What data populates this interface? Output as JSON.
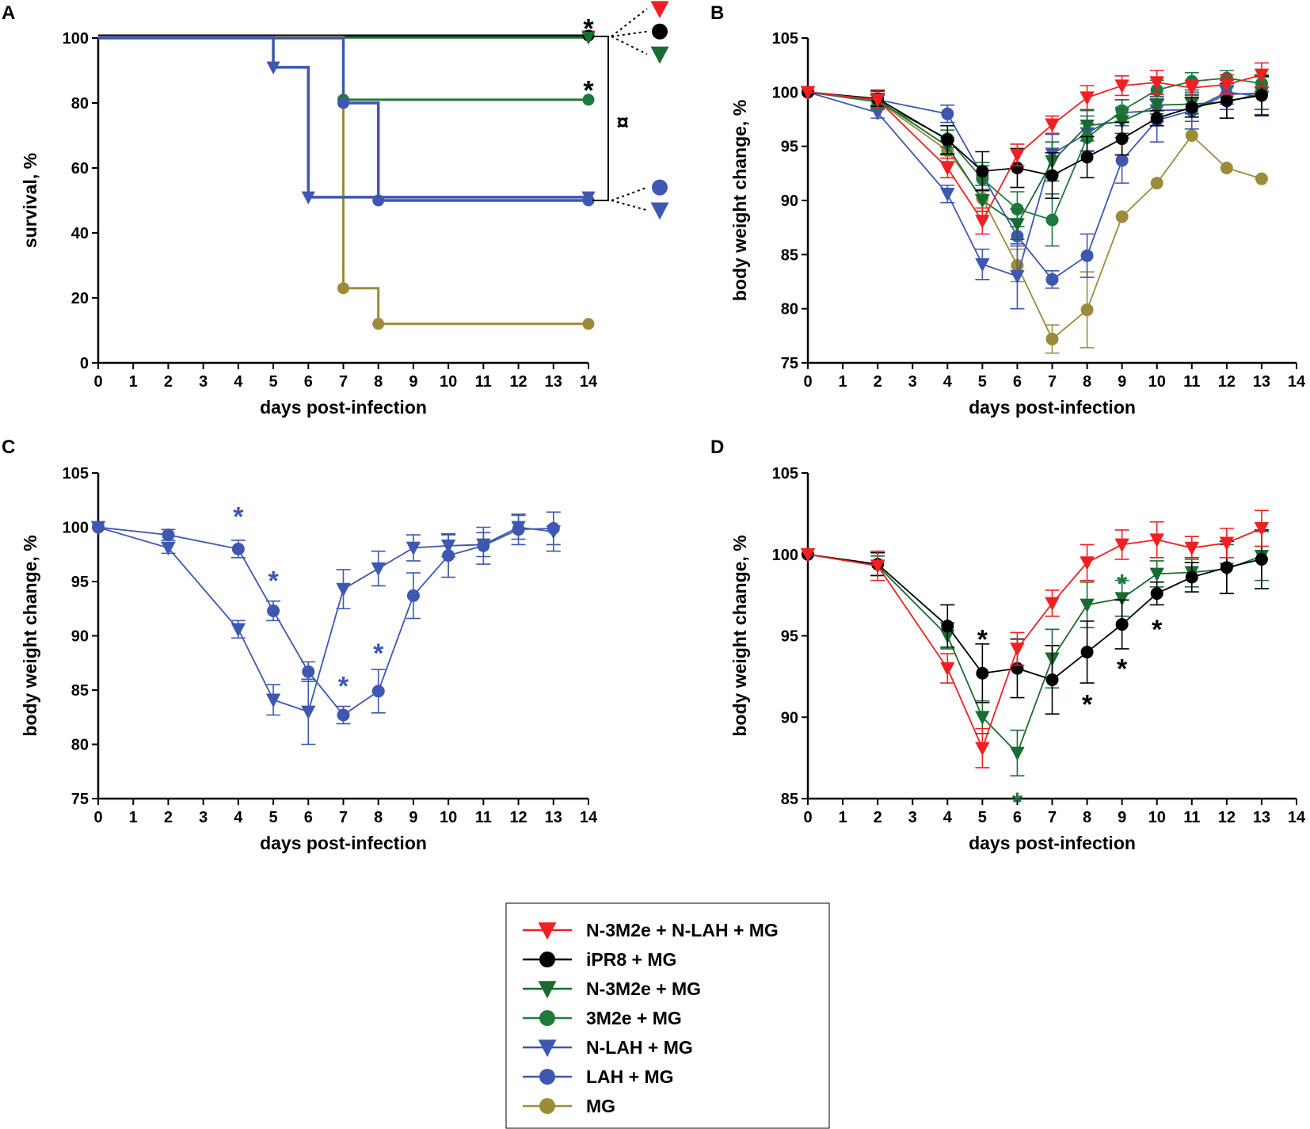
{
  "colors": {
    "red": "#ee2024",
    "black": "#000000",
    "dark_green": "#1a6b30",
    "green": "#1e7a3c",
    "blue": "#3e57b0",
    "olive": "#9c8c3a"
  },
  "legend": [
    {
      "label": "N-3M2e + N-LAH + MG",
      "color": "#ee2024",
      "marker": "triangle-down"
    },
    {
      "label": "iPR8 + MG",
      "color": "#000000",
      "marker": "circle"
    },
    {
      "label": "N-3M2e + MG",
      "color": "#1a6b30",
      "marker": "triangle-down"
    },
    {
      "label": "3M2e + MG",
      "color": "#1e7a3c",
      "marker": "circle"
    },
    {
      "label": "N-LAH + MG",
      "color": "#3e57b0",
      "marker": "triangle-down"
    },
    {
      "label": "LAH + MG",
      "color": "#3e57b0",
      "marker": "circle"
    },
    {
      "label": "MG",
      "color": "#9c8c3a",
      "marker": "circle"
    }
  ],
  "chart_data": [
    {
      "panel": "A",
      "type": "line",
      "subtype": "kaplan-meier survival",
      "xlabel": "days post-infection",
      "ylabel": "survival, %",
      "xlim": [
        0,
        14
      ],
      "ylim": [
        0,
        100
      ],
      "xticks": [
        "0",
        "1",
        "2",
        "3",
        "4",
        "5",
        "6",
        "7",
        "8",
        "9",
        "10",
        "11",
        "12",
        "13",
        "14"
      ],
      "yticks": [
        "0",
        "20",
        "40",
        "60",
        "80",
        "100"
      ],
      "series": [
        {
          "name": "N-3M2e + N-LAH + MG",
          "color": "#ee2024",
          "marker": "triangle-down",
          "offset": 2.2,
          "steps": [
            [
              0,
              100
            ],
            [
              14,
              100
            ]
          ],
          "marks": [
            [
              14,
              100
            ]
          ]
        },
        {
          "name": "iPR8 + MG",
          "color": "#000000",
          "marker": "circle",
          "offset": 3,
          "steps": [
            [
              0,
              100
            ],
            [
              14,
              100
            ]
          ],
          "marks": [
            [
              14,
              100
            ]
          ]
        },
        {
          "name": "N-3M2e + MG",
          "color": "#1a6b30",
          "marker": "triangle-down",
          "offset": 0.7,
          "steps": [
            [
              0,
              100
            ],
            [
              14,
              100
            ]
          ],
          "marks": [
            [
              14,
              100
            ]
          ]
        },
        {
          "name": "MG",
          "color": "#9c8c3a",
          "marker": "circle",
          "offset": 1.5,
          "steps": [
            [
              0,
              100
            ],
            [
              7,
              100
            ],
            [
              7,
              23
            ],
            [
              8,
              23
            ],
            [
              8,
              12
            ],
            [
              14,
              12
            ]
          ],
          "marks": [
            [
              7,
              23
            ],
            [
              8,
              12
            ],
            [
              14,
              12
            ]
          ]
        },
        {
          "name": "3M2e + MG",
          "color": "#1e7a3c",
          "marker": "circle",
          "offset": 0.3,
          "steps": [
            [
              0,
              100
            ],
            [
              7,
              100
            ],
            [
              7,
              81
            ],
            [
              14,
              81
            ]
          ],
          "marks": [
            [
              7,
              81
            ],
            [
              14,
              81
            ]
          ]
        },
        {
          "name": "LAH + MG",
          "color": "#3e57b0",
          "marker": "circle",
          "offset": 0,
          "steps": [
            [
              0,
              100
            ],
            [
              7,
              100
            ],
            [
              7,
              80
            ],
            [
              8,
              80
            ],
            [
              8,
              50
            ],
            [
              14,
              50
            ]
          ],
          "marks": [
            [
              7,
              80
            ],
            [
              8,
              50
            ],
            [
              14,
              50
            ]
          ]
        },
        {
          "name": "N-LAH + MG",
          "color": "#3e57b0",
          "marker": "triangle-down",
          "offset": 0.8,
          "steps": [
            [
              0,
              100
            ],
            [
              5,
              100
            ],
            [
              5,
              91
            ],
            [
              6,
              91
            ],
            [
              6,
              51
            ],
            [
              14,
              51
            ]
          ],
          "marks": [
            [
              5,
              91
            ],
            [
              6,
              51
            ],
            [
              14,
              51
            ]
          ]
        }
      ],
      "annotations": [
        {
          "text": "*",
          "x": 14,
          "y": 105,
          "color": "#000000"
        },
        {
          "text": "*",
          "x": 14,
          "y": 86,
          "color": "#000000"
        },
        {
          "text": "¤",
          "x": 14.9,
          "y": 76,
          "color": "#000000"
        }
      ],
      "side_markers": [
        {
          "color": "#ee2024",
          "marker": "triangle-down",
          "y": 109
        },
        {
          "color": "#000000",
          "marker": "circle",
          "y": 102
        },
        {
          "color": "#1a6b30",
          "marker": "triangle-down",
          "y": 95
        },
        {
          "color": "#3e57b0",
          "marker": "circle",
          "y": 54
        },
        {
          "color": "#3e57b0",
          "marker": "triangle-down",
          "y": 47
        }
      ]
    },
    {
      "panel": "B",
      "type": "line",
      "xlabel": "days post-infection",
      "ylabel": "body weight change, %",
      "xlim": [
        0,
        14
      ],
      "ylim": [
        75,
        105
      ],
      "xticks": [
        "0",
        "1",
        "2",
        "3",
        "4",
        "5",
        "6",
        "7",
        "8",
        "9",
        "10",
        "11",
        "12",
        "13",
        "14"
      ],
      "yticks": [
        "75",
        "80",
        "85",
        "90",
        "95",
        "100",
        "105"
      ],
      "x": [
        0,
        2,
        4,
        5,
        6,
        7,
        8,
        9,
        10,
        11,
        12,
        13
      ],
      "series": [
        {
          "name": "MG",
          "color": "#9c8c3a",
          "marker": "circle",
          "values": [
            100,
            99.2,
            94.6,
            90.2,
            84,
            77.2,
            79.9,
            88.5,
            91.6,
            96,
            93,
            92
          ],
          "errors": [
            0,
            0.6,
            1,
            1.2,
            1.5,
            1.3,
            3.5,
            0,
            0,
            0,
            0,
            0
          ]
        },
        {
          "name": "LAH + MG",
          "color": "#3e57b0",
          "marker": "circle",
          "values": [
            100,
            99.3,
            98,
            92.3,
            86.7,
            82.7,
            84.9,
            93.7,
            97.4,
            98.3,
            99.8,
            99.9
          ],
          "errors": [
            0,
            0.5,
            0.8,
            0.9,
            0.9,
            0.8,
            2,
            2.1,
            2,
            1.7,
            1.4,
            1.5
          ]
        },
        {
          "name": "N-LAH + MG",
          "color": "#3e57b0",
          "marker": "triangle-down",
          "values": [
            100,
            98.1,
            90.6,
            84.1,
            83,
            94.3,
            96.2,
            98.1,
            98.3,
            98.4,
            100,
            99.6
          ],
          "errors": [
            0,
            0.5,
            0.8,
            1.4,
            3,
            1.8,
            1.6,
            1.2,
            1,
            1.1,
            1.1,
            1.8
          ]
        },
        {
          "name": "3M2e + MG",
          "color": "#1e7a3c",
          "marker": "circle",
          "values": [
            100,
            99.1,
            95.7,
            92,
            89.2,
            88.2,
            95.8,
            98.3,
            100.2,
            101,
            101.3,
            100.8
          ],
          "errors": [
            0,
            0.6,
            0.8,
            1.5,
            1.6,
            2.4,
            1.3,
            1,
            0.9,
            0.8,
            0.7,
            0.8
          ]
        },
        {
          "name": "N-3M2e + MG",
          "color": "#1a6b30",
          "marker": "triangle-down",
          "values": [
            100,
            99.3,
            95,
            90,
            87.8,
            93.6,
            96.9,
            97.3,
            98.8,
            98.9,
            99.1,
            99.9
          ],
          "errors": [
            0,
            0.6,
            0.8,
            1,
            1.4,
            1.8,
            1.4,
            1.1,
            0.8,
            0.9,
            1.5,
            1.5
          ]
        },
        {
          "name": "iPR8 + MG",
          "color": "#000000",
          "marker": "circle",
          "values": [
            100,
            99.4,
            95.6,
            92.7,
            93,
            92.3,
            94,
            95.7,
            97.6,
            98.6,
            99.2,
            99.7
          ],
          "errors": [
            0,
            0.7,
            1.3,
            1.8,
            1.8,
            2.1,
            1.9,
            1.5,
            0.7,
            0.9,
            1.6,
            1.8
          ]
        },
        {
          "name": "N-3M2e + N-LAH + MG",
          "color": "#ee2024",
          "marker": "triangle-down",
          "values": [
            100,
            99.3,
            93,
            88.1,
            94.2,
            97,
            99.5,
            100.6,
            100.9,
            100.4,
            100.7,
            101.6
          ],
          "errors": [
            0,
            0.9,
            0.9,
            1.2,
            1,
            0.8,
            1.1,
            0.9,
            1.1,
            0.7,
            0.9,
            1.1
          ]
        }
      ]
    },
    {
      "panel": "C",
      "type": "line",
      "xlabel": "days post-infection",
      "ylabel": "body weight change, %",
      "xlim": [
        0,
        14
      ],
      "ylim": [
        75,
        105
      ],
      "xticks": [
        "0",
        "1",
        "2",
        "3",
        "4",
        "5",
        "6",
        "7",
        "8",
        "9",
        "10",
        "11",
        "12",
        "13",
        "14"
      ],
      "yticks": [
        "75",
        "80",
        "85",
        "90",
        "95",
        "100",
        "105"
      ],
      "x": [
        0,
        2,
        4,
        5,
        6,
        7,
        8,
        9,
        10,
        11,
        12,
        13
      ],
      "series": [
        {
          "name": "LAH + MG",
          "color": "#3e57b0",
          "marker": "circle",
          "values": [
            100,
            99.3,
            98,
            92.3,
            86.7,
            82.7,
            84.9,
            93.7,
            97.4,
            98.3,
            99.8,
            99.9
          ],
          "errors": [
            0,
            0.5,
            0.8,
            0.9,
            0.9,
            0.8,
            2,
            2.1,
            2,
            1.7,
            1.4,
            1.5
          ]
        },
        {
          "name": "N-LAH + MG",
          "color": "#3e57b0",
          "marker": "triangle-down",
          "values": [
            100,
            98.1,
            90.6,
            84.1,
            83,
            94.3,
            96.2,
            98.1,
            98.3,
            98.4,
            100,
            99.6
          ],
          "errors": [
            0,
            0.5,
            0.8,
            1.4,
            3,
            1.8,
            1.6,
            1.2,
            1,
            1.1,
            1.1,
            1.8
          ]
        }
      ],
      "annotations": [
        {
          "text": "*",
          "x": 4,
          "y": 101.6,
          "color": "#3e57b0"
        },
        {
          "text": "*",
          "x": 5,
          "y": 95.7,
          "color": "#3e57b0"
        },
        {
          "text": "*",
          "x": 7,
          "y": 86,
          "color": "#3e57b0"
        },
        {
          "text": "*",
          "x": 8,
          "y": 89,
          "color": "#3e57b0"
        }
      ]
    },
    {
      "panel": "D",
      "type": "line",
      "xlabel": "days post-infection",
      "ylabel": "body weight change, %",
      "xlim": [
        0,
        14
      ],
      "ylim": [
        85,
        105
      ],
      "xticks": [
        "0",
        "1",
        "2",
        "3",
        "4",
        "5",
        "6",
        "7",
        "8",
        "9",
        "10",
        "11",
        "12",
        "13",
        "14"
      ],
      "yticks": [
        "85",
        "90",
        "95",
        "100",
        "105"
      ],
      "x": [
        0,
        2,
        4,
        5,
        6,
        7,
        8,
        9,
        10,
        11,
        12,
        13
      ],
      "series": [
        {
          "name": "N-3M2e + MG",
          "color": "#1a6b30",
          "marker": "triangle-down",
          "values": [
            100,
            99.3,
            95,
            90,
            87.8,
            93.6,
            96.9,
            97.3,
            98.8,
            98.9,
            99.1,
            99.9
          ],
          "errors": [
            0,
            0.6,
            0.8,
            1,
            1.4,
            1.8,
            1.4,
            1.1,
            0.8,
            0.9,
            1.5,
            1.5
          ]
        },
        {
          "name": "iPR8 + MG",
          "color": "#000000",
          "marker": "circle",
          "values": [
            100,
            99.4,
            95.6,
            92.7,
            93,
            92.3,
            94,
            95.7,
            97.6,
            98.6,
            99.2,
            99.7
          ],
          "errors": [
            0,
            0.7,
            1.3,
            1.8,
            1.8,
            2.1,
            1.9,
            1.5,
            0.7,
            0.9,
            1.6,
            1.8
          ]
        },
        {
          "name": "N-3M2e + N-LAH + MG",
          "color": "#ee2024",
          "marker": "triangle-down",
          "values": [
            100,
            99.3,
            93,
            88.1,
            94.2,
            97,
            99.5,
            100.6,
            100.9,
            100.4,
            100.7,
            101.6
          ],
          "errors": [
            0,
            0.9,
            0.9,
            1.2,
            1,
            0.8,
            1.1,
            0.9,
            1.1,
            0.7,
            0.9,
            1.1
          ]
        }
      ],
      "annotations": [
        {
          "text": "*",
          "x": 5,
          "y": 95.2,
          "color": "#000000"
        },
        {
          "text": "*",
          "x": 6,
          "y": 85.2,
          "color": "#1e7a3c"
        },
        {
          "text": "*",
          "x": 8,
          "y": 91.2,
          "color": "#000000"
        },
        {
          "text": "*",
          "x": 9,
          "y": 93.4,
          "color": "#000000"
        },
        {
          "text": "*",
          "x": 9,
          "y": 98.6,
          "color": "#1e7a3c"
        },
        {
          "text": "*",
          "x": 10,
          "y": 95.8,
          "color": "#000000"
        }
      ]
    }
  ]
}
